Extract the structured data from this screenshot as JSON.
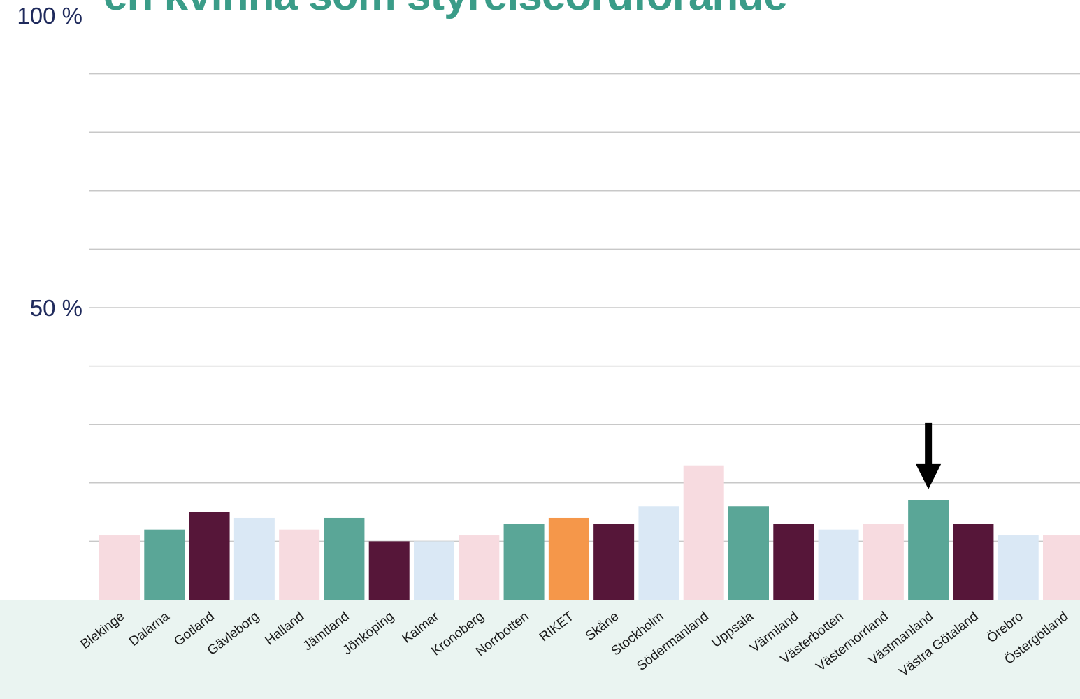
{
  "title": "en kvinna som styrelseordförande",
  "chart_data": {
    "type": "bar",
    "title": "en kvinna som styrelseordförande",
    "xlabel": "",
    "ylabel": "",
    "ylim": [
      0,
      100
    ],
    "y_tick_labels": [
      {
        "value": 100,
        "label": "100 %"
      },
      {
        "value": 50,
        "label": "50 %"
      }
    ],
    "gridlines_at": [
      10,
      20,
      30,
      40,
      50,
      60,
      70,
      80,
      90
    ],
    "grid": true,
    "categories": [
      "Blekinge",
      "Dalarna",
      "Gotland",
      "Gävleborg",
      "Halland",
      "Jämtland",
      "Jönköping",
      "Kalmar",
      "Kronoberg",
      "Norrbotten",
      "RIKET",
      "Skåne",
      "Stockholm",
      "Södermanland",
      "Uppsala",
      "Värmland",
      "Västerbotten",
      "Västernorrland",
      "Västmanland",
      "Västra Götaland",
      "Örebro",
      "Östergötland"
    ],
    "values": [
      11,
      12,
      15,
      14,
      12,
      14,
      10,
      10,
      11,
      13,
      14,
      13,
      16,
      23,
      16,
      13,
      12,
      13,
      17,
      13,
      11,
      11
    ],
    "colors": [
      "#f7dbe0",
      "#5aa697",
      "#561639",
      "#dae8f5",
      "#f7dbe0",
      "#5aa697",
      "#561639",
      "#dae8f5",
      "#f7dbe0",
      "#5aa697",
      "#f5974a",
      "#561639",
      "#dae8f5",
      "#f7dbe0",
      "#5aa697",
      "#561639",
      "#dae8f5",
      "#f7dbe0",
      "#5aa697",
      "#561639",
      "#dae8f5",
      "#f7dbe0"
    ],
    "annotation": {
      "type": "arrow",
      "target_category": "Västmanland",
      "color": "#000000"
    }
  },
  "colors": {
    "title": "#3a9c88",
    "axis_label_band": "#eaf4f1",
    "gridline": "#c8c8c8",
    "y_tick_text": "#1f2a5c"
  }
}
